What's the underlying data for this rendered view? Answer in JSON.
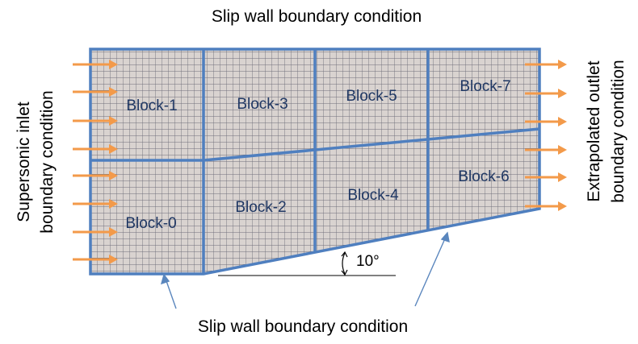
{
  "labels": {
    "top_wall": "Slip wall boundary condition",
    "bottom_wall": "Slip wall boundary condition",
    "inlet_line1": "Supersonic inlet",
    "inlet_line2": "boundary condition",
    "outlet_line1": "Extrapolated outlet",
    "outlet_line2": "boundary condition",
    "angle": "10°"
  },
  "blocks": [
    "Block-0",
    "Block-1",
    "Block-2",
    "Block-3",
    "Block-4",
    "Block-5",
    "Block-6",
    "Block-7"
  ],
  "colors": {
    "mesh_fill": "#d9d3d0",
    "mesh_line": "#6e6e7a",
    "block_border": "#4f7fbf",
    "arrow": "#f39a4a",
    "block_text": "#1f3763",
    "pointer": "#5a86bd"
  },
  "icons": {
    "inflow": "right-arrow-icon",
    "outflow": "right-arrow-icon"
  }
}
